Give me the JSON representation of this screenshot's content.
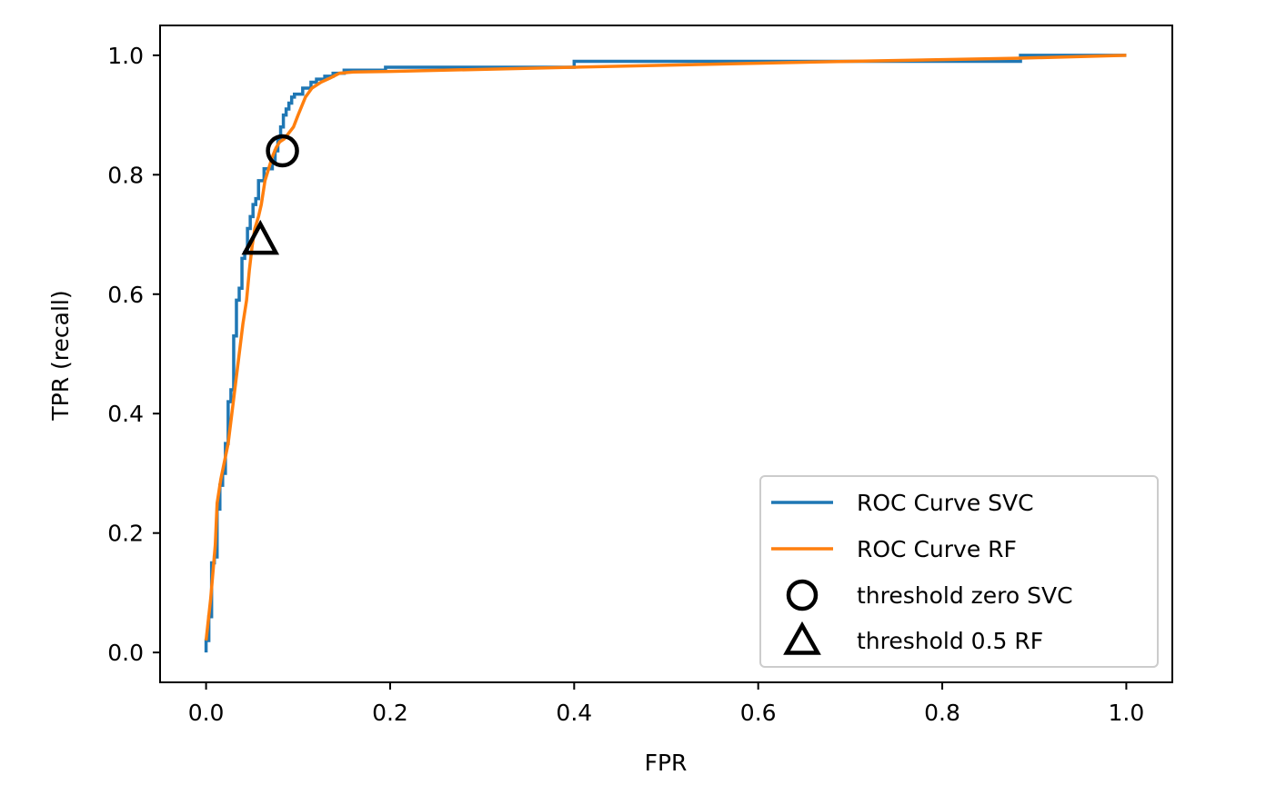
{
  "chart_data": {
    "type": "line",
    "title": "",
    "xlabel": "FPR",
    "ylabel": "TPR (recall)",
    "xlim": [
      -0.05,
      1.05
    ],
    "ylim": [
      -0.05,
      1.05
    ],
    "xticks": [
      0.0,
      0.2,
      0.4,
      0.6,
      0.8,
      1.0
    ],
    "yticks": [
      0.0,
      0.2,
      0.4,
      0.6,
      0.8,
      1.0
    ],
    "xtick_labels": [
      "0.0",
      "0.2",
      "0.4",
      "0.6",
      "0.8",
      "1.0"
    ],
    "ytick_labels": [
      "0.0",
      "0.2",
      "0.4",
      "0.6",
      "0.8",
      "1.0"
    ],
    "grid": false,
    "legend_position": "lower-right",
    "series": [
      {
        "name": "ROC Curve SVC",
        "color": "#1f77b4",
        "style": "step",
        "x": [
          0.0,
          0.0,
          0.003,
          0.003,
          0.006,
          0.006,
          0.009,
          0.009,
          0.012,
          0.012,
          0.015,
          0.015,
          0.018,
          0.018,
          0.021,
          0.021,
          0.024,
          0.024,
          0.027,
          0.027,
          0.03,
          0.03,
          0.033,
          0.033,
          0.036,
          0.036,
          0.039,
          0.039,
          0.042,
          0.042,
          0.045,
          0.045,
          0.048,
          0.048,
          0.051,
          0.051,
          0.054,
          0.054,
          0.057,
          0.057,
          0.06,
          0.06,
          0.063,
          0.063,
          0.066,
          0.066,
          0.069,
          0.069,
          0.072,
          0.072,
          0.075,
          0.075,
          0.078,
          0.078,
          0.081,
          0.081,
          0.084,
          0.084,
          0.087,
          0.087,
          0.09,
          0.09,
          0.093,
          0.093,
          0.096,
          0.096,
          0.105,
          0.105,
          0.114,
          0.114,
          0.12,
          0.12,
          0.129,
          0.129,
          0.138,
          0.138,
          0.15,
          0.15,
          0.195,
          0.195,
          0.4,
          0.4,
          0.885,
          0.885,
          1.0
        ],
        "y": [
          0.0,
          0.02,
          0.02,
          0.06,
          0.06,
          0.15,
          0.15,
          0.16,
          0.16,
          0.24,
          0.24,
          0.28,
          0.28,
          0.3,
          0.3,
          0.35,
          0.35,
          0.42,
          0.42,
          0.44,
          0.44,
          0.53,
          0.53,
          0.59,
          0.59,
          0.61,
          0.61,
          0.66,
          0.66,
          0.67,
          0.67,
          0.71,
          0.71,
          0.73,
          0.73,
          0.75,
          0.75,
          0.76,
          0.76,
          0.79,
          0.79,
          0.79,
          0.79,
          0.81,
          0.81,
          0.81,
          0.81,
          0.81,
          0.81,
          0.82,
          0.82,
          0.84,
          0.84,
          0.86,
          0.86,
          0.88,
          0.88,
          0.9,
          0.9,
          0.91,
          0.91,
          0.92,
          0.92,
          0.93,
          0.93,
          0.935,
          0.935,
          0.945,
          0.945,
          0.955,
          0.955,
          0.96,
          0.96,
          0.965,
          0.965,
          0.97,
          0.97,
          0.975,
          0.975,
          0.98,
          0.98,
          0.99,
          0.99,
          1.0,
          1.0
        ]
      },
      {
        "name": "ROC Curve RF",
        "color": "#ff7f0e",
        "style": "line",
        "x": [
          0.0,
          0.005,
          0.01,
          0.012,
          0.016,
          0.02,
          0.024,
          0.028,
          0.032,
          0.036,
          0.04,
          0.044,
          0.047,
          0.05,
          0.053,
          0.057,
          0.06,
          0.064,
          0.068,
          0.072,
          0.076,
          0.08,
          0.085,
          0.09,
          0.095,
          0.1,
          0.108,
          0.115,
          0.125,
          0.135,
          0.145,
          0.16,
          0.2,
          0.4,
          0.7,
          0.88,
          1.0
        ],
        "y": [
          0.02,
          0.09,
          0.18,
          0.25,
          0.29,
          0.32,
          0.35,
          0.4,
          0.45,
          0.5,
          0.55,
          0.59,
          0.64,
          0.68,
          0.71,
          0.73,
          0.75,
          0.79,
          0.81,
          0.83,
          0.845,
          0.855,
          0.86,
          0.87,
          0.88,
          0.9,
          0.93,
          0.945,
          0.955,
          0.962,
          0.97,
          0.972,
          0.973,
          0.98,
          0.99,
          0.995,
          1.0
        ]
      }
    ],
    "markers": [
      {
        "name": "threshold zero SVC",
        "shape": "circle",
        "x": 0.083,
        "y": 0.84
      },
      {
        "name": "threshold 0.5 RF",
        "shape": "triangle",
        "x": 0.059,
        "y": 0.69
      }
    ],
    "legend": [
      {
        "label": "ROC Curve SVC",
        "kind": "line",
        "color": "#1f77b4"
      },
      {
        "label": "ROC Curve RF",
        "kind": "line",
        "color": "#ff7f0e"
      },
      {
        "label": "threshold zero SVC",
        "kind": "circle",
        "color": "#000000"
      },
      {
        "label": "threshold 0.5 RF",
        "kind": "triangle",
        "color": "#000000"
      }
    ]
  }
}
